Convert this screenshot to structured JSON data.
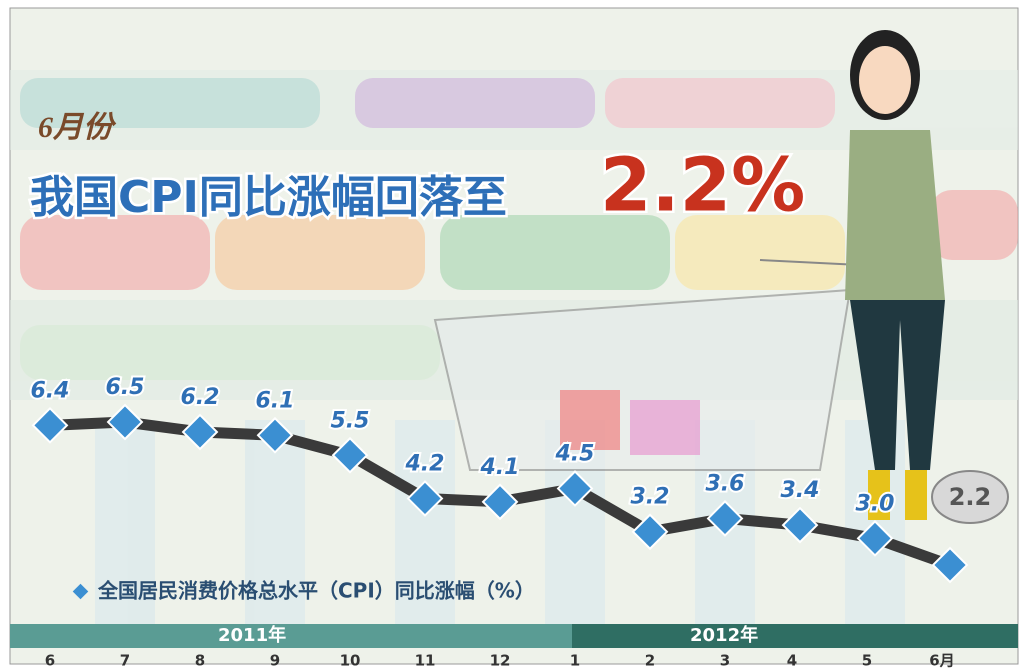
{
  "chart_data": {
    "type": "line",
    "subtitle": "6月份",
    "title": "我国CPI同比涨幅回落至",
    "headline": "2.2%",
    "categories": [
      "6",
      "7",
      "8",
      "9",
      "10",
      "11",
      "12",
      "1",
      "2",
      "3",
      "4",
      "5",
      "6月"
    ],
    "years": [
      "2011年",
      "2012年"
    ],
    "series": [
      {
        "name": "全国居民消费价格总水平（CPI）同比涨幅（%）",
        "color": "#3b8fd2",
        "line_color": "#3a3a3a",
        "values": [
          6.4,
          6.5,
          6.2,
          6.1,
          5.5,
          4.2,
          4.1,
          4.5,
          3.2,
          3.6,
          3.4,
          3.0,
          2.2
        ],
        "value_labels": [
          "6.4",
          "6.5",
          "6.2",
          "6.1",
          "5.5",
          "4.2",
          "4.1",
          "4.5",
          "3.2",
          "3.6",
          "3.4",
          "3.0",
          "2.2"
        ]
      }
    ]
  }
}
